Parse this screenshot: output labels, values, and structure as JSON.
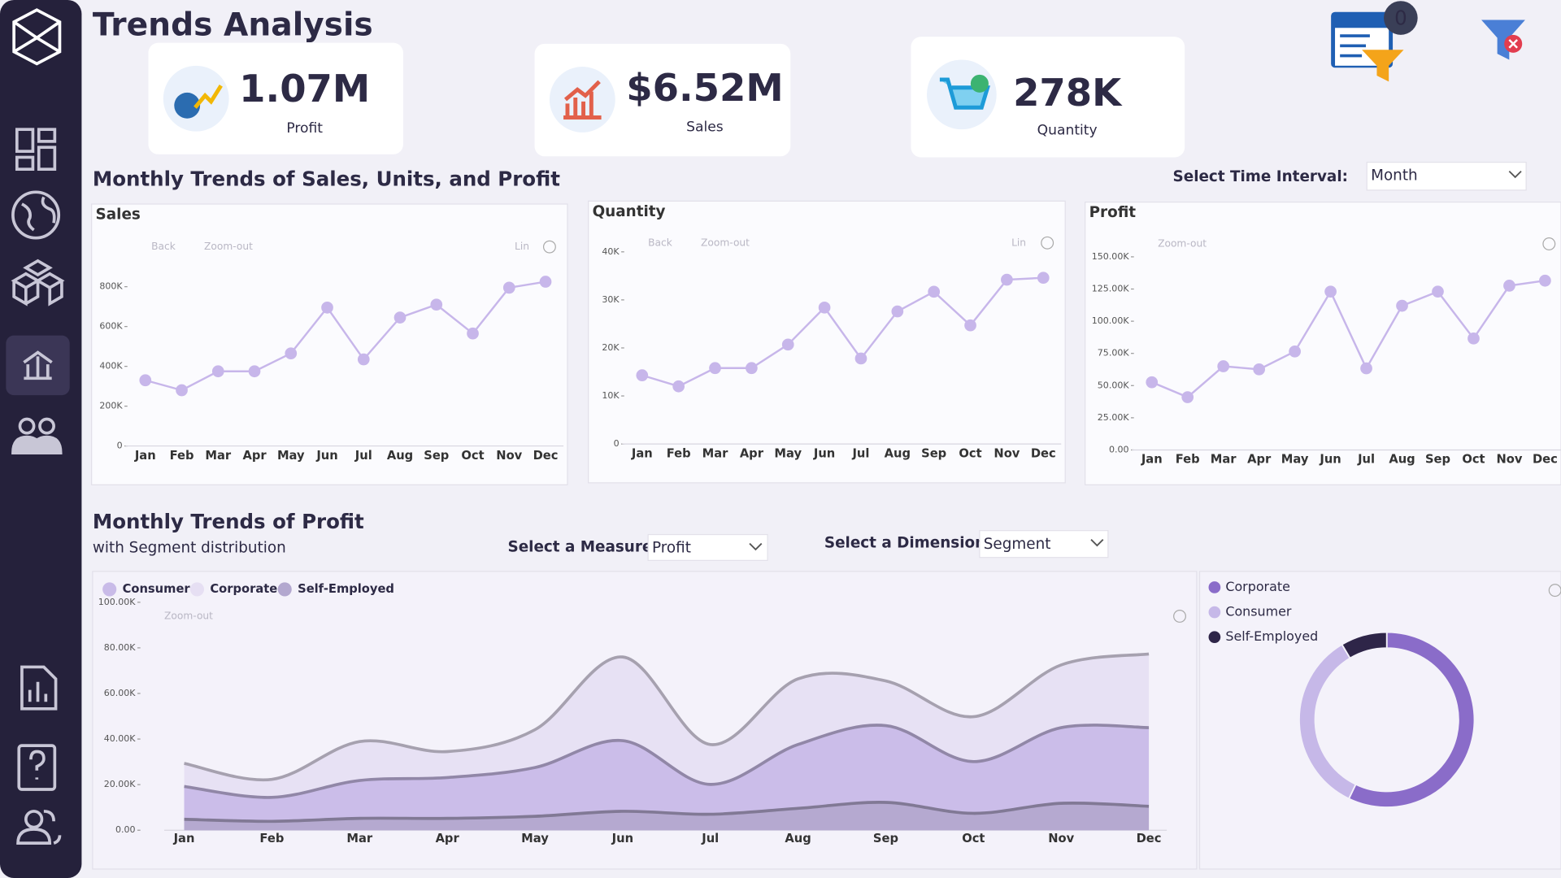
{
  "header": {
    "title": "Trends Analysis",
    "notification_count": 0
  },
  "kpis": [
    {
      "value": "1.07M",
      "label": "Profit"
    },
    {
      "value": "$6.52M",
      "label": "Sales"
    },
    {
      "value": "278K",
      "label": "Quantity"
    }
  ],
  "section1": {
    "title": "Monthly Trends of Sales, Units, and Profit",
    "control_label": "Select Time Interval:",
    "control_value": "Month"
  },
  "section2": {
    "measure_label": "Select a Measure:",
    "measure_value": "Profit",
    "dimension_label": "Select a Dimension:",
    "dimension_value": "Segment"
  },
  "chart_data": [
    {
      "type": "line",
      "title": "Sales",
      "toolbar": [
        "Back",
        "Zoom-out",
        "Lin"
      ],
      "categories": [
        "Jan",
        "Feb",
        "Mar",
        "Apr",
        "May",
        "Jun",
        "Jul",
        "Aug",
        "Sep",
        "Oct",
        "Nov",
        "Dec"
      ],
      "values": [
        330000,
        280000,
        375000,
        375000,
        465000,
        695000,
        435000,
        645000,
        710000,
        565000,
        795000,
        825000
      ],
      "color": "#c7b6ea",
      "ylim": [
        0,
        900000
      ],
      "yticks": [
        0,
        {
          "value": 200000,
          "label": "200K"
        },
        {
          "value": 400000,
          "label": "400K"
        },
        {
          "value": 600000,
          "label": "600K"
        },
        {
          "value": 800000,
          "label": "800K"
        }
      ]
    },
    {
      "type": "line",
      "title": "Quantity",
      "toolbar": [
        "Back",
        "Zoom-out",
        "Lin"
      ],
      "categories": [
        "Jan",
        "Feb",
        "Mar",
        "Apr",
        "May",
        "Jun",
        "Jul",
        "Aug",
        "Sep",
        "Oct",
        "Nov",
        "Dec"
      ],
      "values": [
        14300,
        12000,
        15800,
        15800,
        20700,
        28400,
        17800,
        27600,
        31700,
        24700,
        34200,
        34600
      ],
      "color": "#c7b6ea",
      "ylim": [
        0,
        40000
      ],
      "yticks": [
        0,
        {
          "value": 10000,
          "label": "10K"
        },
        {
          "value": 20000,
          "label": "20K"
        },
        {
          "value": 30000,
          "label": "30K"
        },
        {
          "value": 40000,
          "label": "40K"
        }
      ]
    },
    {
      "type": "line",
      "title": "Profit",
      "toolbar": [
        "Zoom-out"
      ],
      "categories": [
        "Jan",
        "Feb",
        "Mar",
        "Apr",
        "May",
        "Jun",
        "Jul",
        "Aug",
        "Sep",
        "Oct",
        "Nov",
        "Dec"
      ],
      "values": [
        52600,
        41000,
        65000,
        62600,
        76500,
        123000,
        63400,
        112000,
        123000,
        86600,
        127600,
        131500
      ],
      "color": "#c7b6ea",
      "ylim": [
        0,
        150000
      ],
      "yticks": [
        {
          "value": 0,
          "label": "0.00"
        },
        {
          "value": 25000,
          "label": "25.00K"
        },
        {
          "value": 50000,
          "label": "50.00K"
        },
        {
          "value": 75000,
          "label": "75.00K"
        },
        {
          "value": 100000,
          "label": "100.00K"
        },
        {
          "value": 125000,
          "label": "125.00K"
        },
        {
          "value": 150000,
          "label": "150.00K"
        }
      ]
    },
    {
      "type": "area",
      "title": "Monthly Trends of Profit",
      "subtitle": "with Segment distribution",
      "toolbar": [
        "Zoom-out"
      ],
      "categories": [
        "Jan",
        "Feb",
        "Mar",
        "Apr",
        "May",
        "Jun",
        "Jul",
        "Aug",
        "Sep",
        "Oct",
        "Nov",
        "Dec"
      ],
      "series": [
        {
          "name": "Consumer",
          "color": "#c9bbe8",
          "values": [
            19200,
            14400,
            21800,
            23100,
            27500,
            39300,
            20100,
            37600,
            45900,
            30100,
            45000,
            45000
          ]
        },
        {
          "name": "Corporate",
          "color": "#e6dff3",
          "values": [
            29300,
            22300,
            38900,
            34500,
            44100,
            76000,
            37600,
            66400,
            65500,
            49800,
            72500,
            77300
          ]
        },
        {
          "name": "Self-Employed",
          "color": "#b3a8cf",
          "values": [
            4800,
            3900,
            5200,
            5200,
            6100,
            8300,
            7000,
            9600,
            12200,
            7400,
            11800,
            10500
          ]
        }
      ],
      "ylim": [
        0,
        100000
      ],
      "yticks": [
        {
          "value": 0,
          "label": "0.00"
        },
        {
          "value": 20000,
          "label": "20.00K"
        },
        {
          "value": 40000,
          "label": "40.00K"
        },
        {
          "value": 60000,
          "label": "60.00K"
        },
        {
          "value": 80000,
          "label": "80.00K"
        },
        {
          "value": 100000,
          "label": "100.00K"
        }
      ]
    },
    {
      "type": "pie",
      "donut": true,
      "categories": [
        "Corporate",
        "Consumer",
        "Self-Employed"
      ],
      "values": [
        614200,
        369000,
        92000
      ],
      "colors": [
        "#8a6cc9",
        "#c6b8e8",
        "#2e2548"
      ]
    }
  ]
}
